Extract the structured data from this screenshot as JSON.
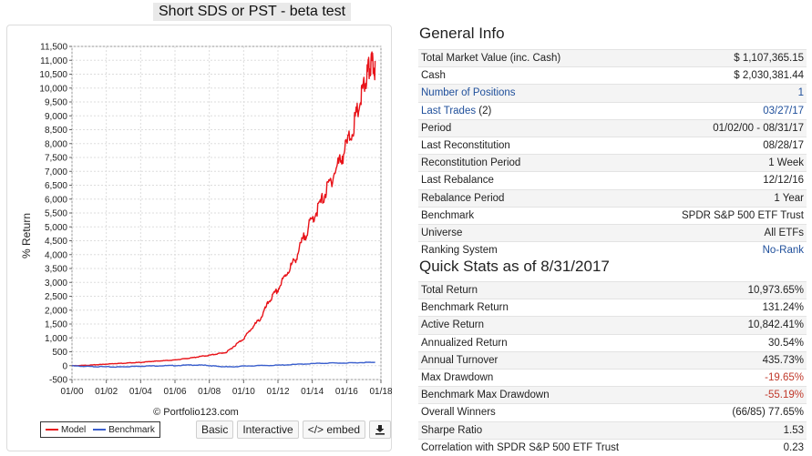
{
  "title": "Short SDS or PST - beta test",
  "chart_data": {
    "type": "line",
    "ylabel": "% Return",
    "xlabel": "",
    "ylim": [
      -500,
      11500
    ],
    "yticks": [
      -500,
      0,
      500,
      1000,
      1500,
      2000,
      2500,
      3000,
      3500,
      4000,
      4500,
      5000,
      5500,
      6000,
      6500,
      7000,
      7500,
      8000,
      8500,
      9000,
      9500,
      10000,
      10500,
      11000,
      11500
    ],
    "xlim": [
      2000.0,
      2018.0
    ],
    "xticks": [
      {
        "x": 2000,
        "label": "01/00"
      },
      {
        "x": 2002,
        "label": "01/02"
      },
      {
        "x": 2004,
        "label": "01/04"
      },
      {
        "x": 2006,
        "label": "01/06"
      },
      {
        "x": 2008,
        "label": "01/08"
      },
      {
        "x": 2010,
        "label": "01/10"
      },
      {
        "x": 2012,
        "label": "01/12"
      },
      {
        "x": 2014,
        "label": "01/14"
      },
      {
        "x": 2016,
        "label": "01/16"
      },
      {
        "x": 2018,
        "label": "01/18"
      }
    ],
    "grid": true,
    "legend_position": "bottom-left",
    "credit": "© Portfolio123.com",
    "series": [
      {
        "name": "Model",
        "color": "#e8141a",
        "points": [
          [
            2000.0,
            0
          ],
          [
            2000.5,
            10
          ],
          [
            2001.0,
            20
          ],
          [
            2001.5,
            40
          ],
          [
            2002.0,
            60
          ],
          [
            2002.5,
            80
          ],
          [
            2003.0,
            90
          ],
          [
            2003.5,
            110
          ],
          [
            2004.0,
            120
          ],
          [
            2004.5,
            150
          ],
          [
            2005.0,
            170
          ],
          [
            2005.5,
            190
          ],
          [
            2006.0,
            210
          ],
          [
            2006.5,
            250
          ],
          [
            2007.0,
            290
          ],
          [
            2007.5,
            340
          ],
          [
            2008.0,
            380
          ],
          [
            2008.5,
            440
          ],
          [
            2009.0,
            490
          ],
          [
            2009.5,
            750
          ],
          [
            2010.0,
            1000
          ],
          [
            2010.5,
            1400
          ],
          [
            2011.0,
            1750
          ],
          [
            2011.5,
            2400
          ],
          [
            2012.0,
            2800
          ],
          [
            2012.5,
            3400
          ],
          [
            2013.0,
            3900
          ],
          [
            2013.5,
            4700
          ],
          [
            2014.0,
            5400
          ],
          [
            2014.5,
            6000
          ],
          [
            2015.0,
            6700
          ],
          [
            2015.5,
            7400
          ],
          [
            2016.0,
            8100
          ],
          [
            2016.5,
            9000
          ],
          [
            2016.9,
            10000
          ],
          [
            2017.2,
            10700
          ],
          [
            2017.4,
            11100
          ],
          [
            2017.66,
            10974
          ]
        ]
      },
      {
        "name": "Benchmark",
        "color": "#3a5fcd",
        "points": [
          [
            2000.0,
            0
          ],
          [
            2000.8,
            -20
          ],
          [
            2001.5,
            -30
          ],
          [
            2002.5,
            -40
          ],
          [
            2003.2,
            -30
          ],
          [
            2004.0,
            -10
          ],
          [
            2005.0,
            0
          ],
          [
            2006.0,
            10
          ],
          [
            2007.0,
            30
          ],
          [
            2007.8,
            20
          ],
          [
            2008.5,
            -20
          ],
          [
            2009.2,
            -40
          ],
          [
            2010.0,
            -10
          ],
          [
            2011.0,
            10
          ],
          [
            2012.0,
            20
          ],
          [
            2013.0,
            50
          ],
          [
            2014.0,
            80
          ],
          [
            2015.0,
            100
          ],
          [
            2016.0,
            100
          ],
          [
            2017.0,
            120
          ],
          [
            2017.66,
            131
          ]
        ]
      }
    ]
  },
  "legend": {
    "model": "Model",
    "benchmark": "Benchmark"
  },
  "buttons": {
    "basic": "Basic",
    "interactive": "Interactive",
    "embed": "</> embed",
    "download_icon": "download-icon"
  },
  "general_info": {
    "title": "General Info",
    "rows": [
      {
        "label": "Total Market Value (inc. Cash)",
        "value": "$ 1,107,365.15"
      },
      {
        "label": "Cash",
        "value": "$ 2,030,381.44"
      },
      {
        "label": "Number of Positions",
        "value": "1"
      },
      {
        "label": "Last Trades",
        "count": "(2)",
        "value": "03/27/17"
      },
      {
        "label": "Period",
        "value": "01/02/00 - 08/31/17"
      },
      {
        "label": "Last Reconstitution",
        "value": "08/28/17"
      },
      {
        "label": "Reconstitution Period",
        "value": "1 Week"
      },
      {
        "label": "Last Rebalance",
        "value": "12/12/16"
      },
      {
        "label": "Rebalance Period",
        "value": "1 Year"
      },
      {
        "label": "Benchmark",
        "value": "SPDR S&P 500 ETF Trust"
      },
      {
        "label": "Universe",
        "value": "All ETFs"
      },
      {
        "label": "Ranking System",
        "value": "No-Rank"
      }
    ]
  },
  "quick_stats": {
    "title": "Quick Stats as of 8/31/2017",
    "rows": [
      {
        "label": "Total Return",
        "value": "10,973.65%"
      },
      {
        "label": "Benchmark Return",
        "value": "131.24%"
      },
      {
        "label": "Active Return",
        "value": "10,842.41%"
      },
      {
        "label": "Annualized Return",
        "value": "30.54%"
      },
      {
        "label": "Annual Turnover",
        "value": "435.73%"
      },
      {
        "label": "Max Drawdown",
        "value": "-19.65%"
      },
      {
        "label": "Benchmark Max Drawdown",
        "value": "-55.19%"
      },
      {
        "label": "Overall Winners",
        "value": "(66/85) 77.65%"
      },
      {
        "label": "Sharpe Ratio",
        "value": "1.53"
      },
      {
        "label": "Correlation with SPDR S&P 500 ETF Trust",
        "value": "0.23"
      }
    ]
  }
}
